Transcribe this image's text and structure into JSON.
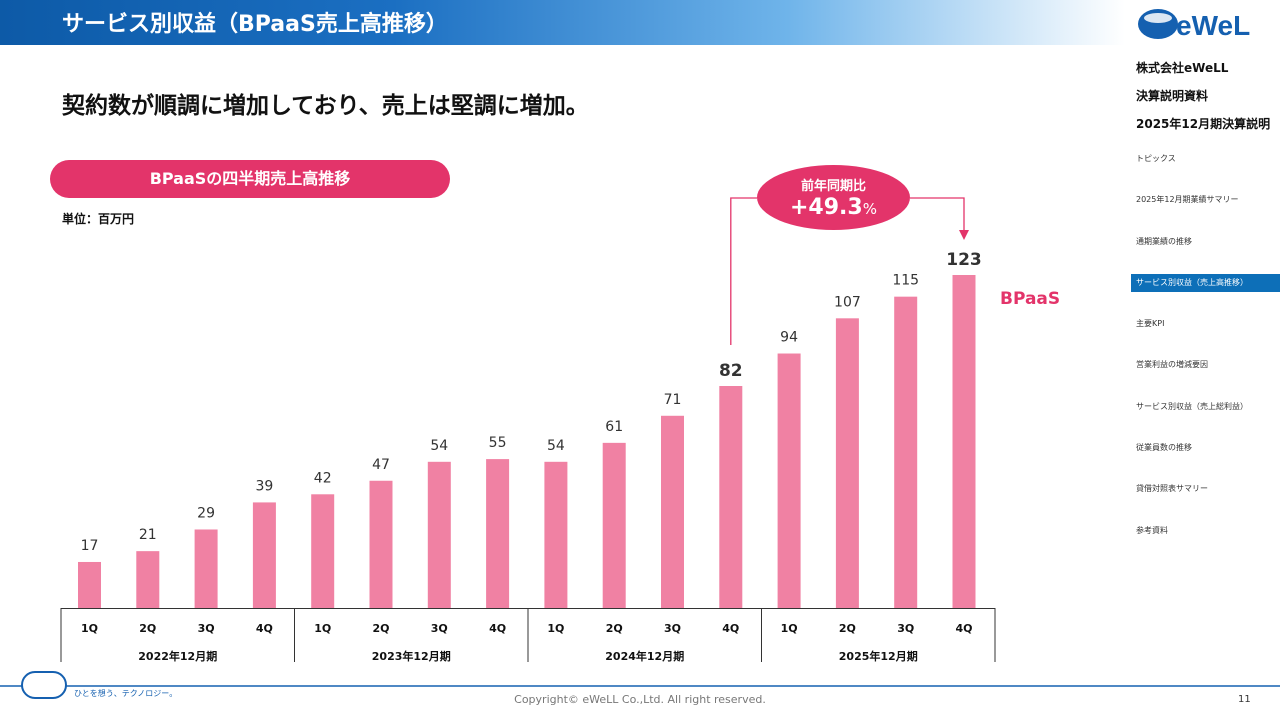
{
  "header": {
    "title": "サービス別収益（BPaaS売上高推移）"
  },
  "logo": {
    "text": "eWeLL"
  },
  "company": {
    "name": "株式会社eWeLL",
    "doc": "決算説明資料",
    "period": "2025年12月期決算説明"
  },
  "nav": {
    "items": [
      {
        "label": "トピックス",
        "active": false
      },
      {
        "label": "2025年12月期業績サマリー",
        "active": false
      },
      {
        "label": "通期業績の推移",
        "active": false
      },
      {
        "label": "サービス別収益（売上高推移）",
        "active": true
      },
      {
        "label": "主要KPI",
        "active": false
      },
      {
        "label": "営業利益の増減要因",
        "active": false
      },
      {
        "label": "サービス別収益（売上総利益）",
        "active": false
      },
      {
        "label": "従業員数の推移",
        "active": false
      },
      {
        "label": "貸借対照表サマリー",
        "active": false
      },
      {
        "label": "参考資料",
        "active": false
      }
    ]
  },
  "subtitle": "契約数が順調に増加しており、売上は堅調に増加。",
  "callout": {
    "label": "前年同期比",
    "value": "+49.3",
    "suffix": "%"
  },
  "footer": {
    "tagline": "ひとを想う、テクノロジー。",
    "copyright": "Copyright© eWeLL Co.,Ltd. All right reserved.",
    "page": "11"
  },
  "colors": {
    "bar": "#f081a3",
    "accent": "#e3346a",
    "header": "#0d5aa7"
  },
  "chart_data": {
    "type": "bar",
    "title": "BPaaSの四半期売上高推移",
    "unit": "単位：百万円",
    "series": [
      {
        "name": "BPaaS",
        "values": [
          17,
          21,
          29,
          39,
          42,
          47,
          54,
          55,
          54,
          61,
          71,
          82,
          94,
          107,
          115,
          123
        ]
      }
    ],
    "categories": [
      "1Q",
      "2Q",
      "3Q",
      "4Q",
      "1Q",
      "2Q",
      "3Q",
      "4Q",
      "1Q",
      "2Q",
      "3Q",
      "4Q",
      "1Q",
      "2Q",
      "3Q",
      "4Q"
    ],
    "groups": [
      "2022年12月期",
      "2023年12月期",
      "2024年12月期",
      "2025年12月期"
    ],
    "emphasized": [
      11,
      15
    ],
    "ylim": [
      0,
      123
    ],
    "grid": false
  }
}
